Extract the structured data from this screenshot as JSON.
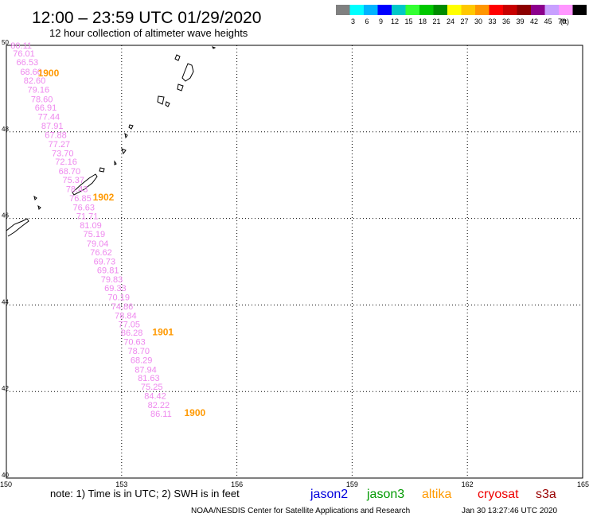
{
  "header": {
    "title": "12:00 – 23:59 UTC 01/29/2020",
    "subtitle": "12 hour collection of altimeter wave heights"
  },
  "legend": {
    "unit": "(ft)",
    "swatches": [
      {
        "label": "",
        "color": "#808080"
      },
      {
        "label": "3",
        "color": "#00ffff"
      },
      {
        "label": "6",
        "color": "#00b4ff"
      },
      {
        "label": "9",
        "color": "#0000ff"
      },
      {
        "label": "12",
        "color": "#00c8c8"
      },
      {
        "label": "15",
        "color": "#33ff33"
      },
      {
        "label": "18",
        "color": "#00c800"
      },
      {
        "label": "21",
        "color": "#008c00"
      },
      {
        "label": "24",
        "color": "#ffff00"
      },
      {
        "label": "27",
        "color": "#ffc800"
      },
      {
        "label": "30",
        "color": "#ff9600"
      },
      {
        "label": "33",
        "color": "#ff0000"
      },
      {
        "label": "36",
        "color": "#c80000"
      },
      {
        "label": "39",
        "color": "#8c0000"
      },
      {
        "label": "42",
        "color": "#8c008c"
      },
      {
        "label": "45",
        "color": "#c8a0ff"
      },
      {
        "label": "70",
        "color": "#ff96ff"
      },
      {
        "label": "",
        "color": "#000000"
      }
    ]
  },
  "map": {
    "lon_range": [
      150,
      165
    ],
    "lat_range": [
      40,
      50
    ],
    "lon_ticks": [
      "150",
      "153",
      "156",
      "159",
      "162",
      "165"
    ],
    "lat_ticks": [
      "40",
      "42",
      "44",
      "46",
      "48",
      "50"
    ],
    "swh_color": "#ee88ee",
    "time_color": "#ff9900",
    "swh_labels": [
      {
        "text": "80.11",
        "lon": 150.11,
        "lat": 49.93
      },
      {
        "text": "76.01",
        "lon": 150.17,
        "lat": 49.74
      },
      {
        "text": "66.53",
        "lon": 150.26,
        "lat": 49.54
      },
      {
        "text": "68.60",
        "lon": 150.36,
        "lat": 49.32
      },
      {
        "text": "82.60",
        "lon": 150.45,
        "lat": 49.12
      },
      {
        "text": "79.16",
        "lon": 150.55,
        "lat": 48.91
      },
      {
        "text": "78.60",
        "lon": 150.64,
        "lat": 48.69
      },
      {
        "text": "66.91",
        "lon": 150.74,
        "lat": 48.49
      },
      {
        "text": "77.44",
        "lon": 150.82,
        "lat": 48.28
      },
      {
        "text": "87.91",
        "lon": 150.91,
        "lat": 48.07
      },
      {
        "text": "67.88",
        "lon": 151.0,
        "lat": 47.86
      },
      {
        "text": "77.27",
        "lon": 151.09,
        "lat": 47.65
      },
      {
        "text": "73.70",
        "lon": 151.18,
        "lat": 47.44
      },
      {
        "text": "72.16",
        "lon": 151.27,
        "lat": 47.24
      },
      {
        "text": "68.70",
        "lon": 151.36,
        "lat": 47.02
      },
      {
        "text": "75.37",
        "lon": 151.46,
        "lat": 46.82
      },
      {
        "text": "78.43",
        "lon": 151.55,
        "lat": 46.61
      },
      {
        "text": "76.85",
        "lon": 151.64,
        "lat": 46.4
      },
      {
        "text": "76.63",
        "lon": 151.73,
        "lat": 46.19
      },
      {
        "text": "71.71",
        "lon": 151.82,
        "lat": 45.98
      },
      {
        "text": "81.09",
        "lon": 151.91,
        "lat": 45.77
      },
      {
        "text": "75.19",
        "lon": 152.0,
        "lat": 45.57
      },
      {
        "text": "79.04",
        "lon": 152.09,
        "lat": 45.35
      },
      {
        "text": "76.62",
        "lon": 152.18,
        "lat": 45.15
      },
      {
        "text": "69.73",
        "lon": 152.27,
        "lat": 44.94
      },
      {
        "text": "69.81",
        "lon": 152.36,
        "lat": 44.73
      },
      {
        "text": "79.83",
        "lon": 152.46,
        "lat": 44.52
      },
      {
        "text": "69.33",
        "lon": 152.55,
        "lat": 44.32
      },
      {
        "text": "70.19",
        "lon": 152.64,
        "lat": 44.11
      },
      {
        "text": "74.86",
        "lon": 152.73,
        "lat": 43.9
      },
      {
        "text": "78.84",
        "lon": 152.82,
        "lat": 43.69
      },
      {
        "text": "77.05",
        "lon": 152.91,
        "lat": 43.48
      },
      {
        "text": "86.28",
        "lon": 152.98,
        "lat": 43.29
      },
      {
        "text": "70.63",
        "lon": 153.05,
        "lat": 43.08
      },
      {
        "text": "78.70",
        "lon": 153.16,
        "lat": 42.87
      },
      {
        "text": "68.29",
        "lon": 153.23,
        "lat": 42.66
      },
      {
        "text": "87.94",
        "lon": 153.34,
        "lat": 42.44
      },
      {
        "text": "81.63",
        "lon": 153.42,
        "lat": 42.24
      },
      {
        "text": "75.25",
        "lon": 153.5,
        "lat": 42.04
      },
      {
        "text": "84.42",
        "lon": 153.59,
        "lat": 41.83
      },
      {
        "text": "82.22",
        "lon": 153.68,
        "lat": 41.62
      },
      {
        "text": "86.11",
        "lon": 153.75,
        "lat": 41.42
      }
    ],
    "time_labels": [
      {
        "text": "1900",
        "lon": 150.82,
        "lat": 49.28
      },
      {
        "text": "1902",
        "lon": 152.25,
        "lat": 46.42
      },
      {
        "text": "1901",
        "lon": 153.8,
        "lat": 43.3
      },
      {
        "text": "1900",
        "lon": 154.63,
        "lat": 41.43
      }
    ]
  },
  "footer": {
    "note": "note: 1) Time is in UTC; 2) SWH is in feet",
    "satellites": [
      {
        "name": "jason2",
        "color": "#0000dd"
      },
      {
        "name": "jason3",
        "color": "#009900"
      },
      {
        "name": "altika",
        "color": "#ff9900"
      },
      {
        "name": "cryosat",
        "color": "#ee0000"
      },
      {
        "name": "s3a",
        "color": "#990000"
      }
    ],
    "credit": "NOAA/NESDIS Center for Satellite Applications and Research",
    "timestamp": "Jan 30 13:27:46 UTC 2020"
  }
}
